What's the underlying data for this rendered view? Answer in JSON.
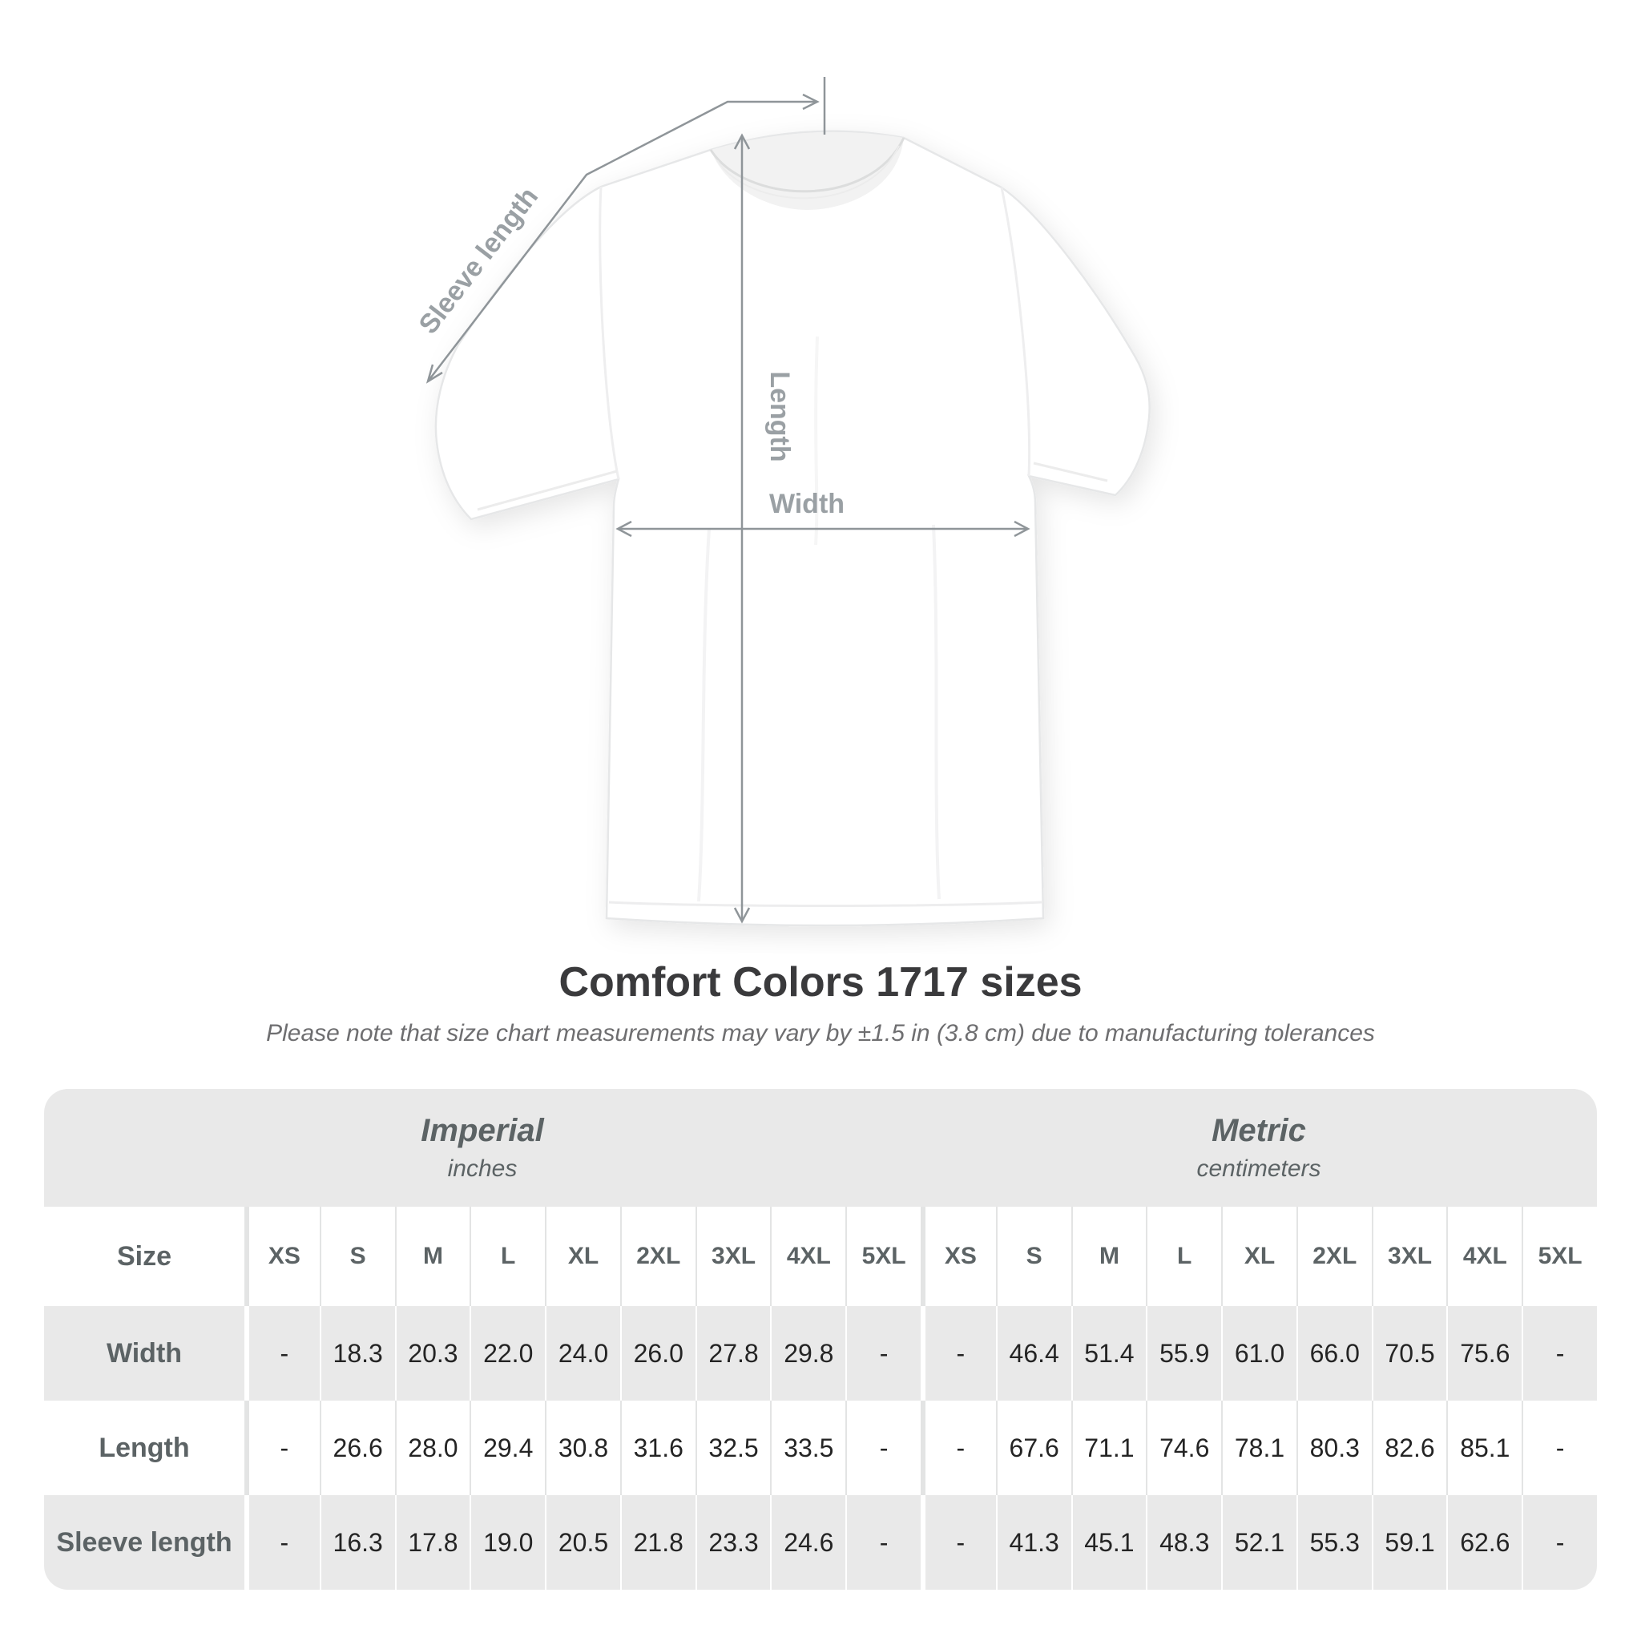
{
  "diagram": {
    "labels": {
      "sleeve_length": "Sleeve length",
      "length": "Length",
      "width": "Width"
    },
    "line_color": "#8f9599",
    "label_color": "#9aa0a4"
  },
  "heading": {
    "title": "Comfort Colors 1717 sizes",
    "subtitle": "Please note that size chart measurements may vary by ±1.5 in (3.8 cm) due to manufacturing tolerances"
  },
  "table": {
    "size_header": "Size",
    "sections": [
      {
        "name": "Imperial",
        "unit": "inches"
      },
      {
        "name": "Metric",
        "unit": "centimeters"
      }
    ],
    "sizes": [
      "XS",
      "S",
      "M",
      "L",
      "XL",
      "2XL",
      "3XL",
      "4XL",
      "5XL"
    ],
    "rows": [
      {
        "label": "Width",
        "imperial": [
          "-",
          "18.3",
          "20.3",
          "22.0",
          "24.0",
          "26.0",
          "27.8",
          "29.8",
          "-"
        ],
        "metric": [
          "-",
          "46.4",
          "51.4",
          "55.9",
          "61.0",
          "66.0",
          "70.5",
          "75.6",
          "-"
        ]
      },
      {
        "label": "Length",
        "imperial": [
          "-",
          "26.6",
          "28.0",
          "29.4",
          "30.8",
          "31.6",
          "32.5",
          "33.5",
          "-"
        ],
        "metric": [
          "-",
          "67.6",
          "71.1",
          "74.6",
          "78.1",
          "80.3",
          "82.6",
          "85.1",
          "-"
        ]
      },
      {
        "label": "Sleeve length",
        "imperial": [
          "-",
          "16.3",
          "17.8",
          "19.0",
          "20.5",
          "21.8",
          "23.3",
          "24.6",
          "-"
        ],
        "metric": [
          "-",
          "41.3",
          "45.1",
          "48.3",
          "52.1",
          "55.3",
          "59.1",
          "62.6",
          "-"
        ]
      }
    ],
    "colors": {
      "band_bg": "#e9e9e9",
      "alt_row_bg": "#e9e9e9",
      "header_text": "#5c6365",
      "value_text": "#242424",
      "divider_on_white": "#e3e4e4",
      "divider_on_gray": "#ffffff"
    }
  },
  "chart_data": {
    "type": "table",
    "title": "Comfort Colors 1717 sizes",
    "note": "Measurements may vary by ±1.5 in (3.8 cm) due to manufacturing tolerances",
    "columns": [
      "XS",
      "S",
      "M",
      "L",
      "XL",
      "2XL",
      "3XL",
      "4XL",
      "5XL"
    ],
    "series": [
      {
        "name": "Width (inches)",
        "values": [
          null,
          18.3,
          20.3,
          22.0,
          24.0,
          26.0,
          27.8,
          29.8,
          null
        ]
      },
      {
        "name": "Length (inches)",
        "values": [
          null,
          26.6,
          28.0,
          29.4,
          30.8,
          31.6,
          32.5,
          33.5,
          null
        ]
      },
      {
        "name": "Sleeve length (inches)",
        "values": [
          null,
          16.3,
          17.8,
          19.0,
          20.5,
          21.8,
          23.3,
          24.6,
          null
        ]
      },
      {
        "name": "Width (cm)",
        "values": [
          null,
          46.4,
          51.4,
          55.9,
          61.0,
          66.0,
          70.5,
          75.6,
          null
        ]
      },
      {
        "name": "Length (cm)",
        "values": [
          null,
          67.6,
          71.1,
          74.6,
          78.1,
          80.3,
          82.6,
          85.1,
          null
        ]
      },
      {
        "name": "Sleeve length (cm)",
        "values": [
          null,
          41.3,
          45.1,
          48.3,
          52.1,
          55.3,
          59.1,
          62.6,
          null
        ]
      }
    ]
  }
}
